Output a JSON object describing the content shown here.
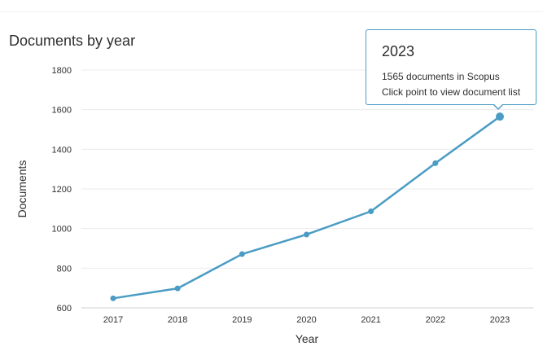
{
  "chart_data": {
    "type": "line",
    "title": "Documents by year",
    "xlabel": "Year",
    "ylabel": "Documents",
    "categories": [
      "2017",
      "2018",
      "2019",
      "2020",
      "2021",
      "2022",
      "2023"
    ],
    "values": [
      648,
      698,
      871,
      970,
      1087,
      1330,
      1565
    ],
    "ylim": [
      600,
      1800
    ],
    "yticks": [
      600,
      800,
      1000,
      1200,
      1400,
      1600,
      1800
    ],
    "grid": true,
    "legend": "none",
    "highlighted_category": "2023",
    "line_color": "#4a9cc4"
  },
  "tooltip": {
    "title": "2023",
    "line1": "1565 documents in Scopus",
    "line2": "Click point to view document list"
  }
}
